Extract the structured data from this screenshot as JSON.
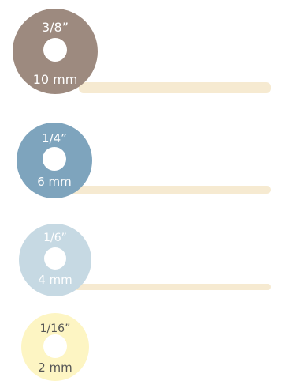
{
  "sizes": [
    {
      "inch": "3/8”",
      "mm": "10 mm",
      "disc_color": "#9d8a7f",
      "bar_color": "#f6ead1"
    },
    {
      "inch": "1/4”",
      "mm": "6 mm",
      "disc_color": "#7ea4bd",
      "bar_color": "#f6ead1"
    },
    {
      "inch": "1/6”",
      "mm": "4 mm",
      "disc_color": "#c6d9e3",
      "bar_color": "#f6ead1"
    },
    {
      "inch": "1/16”",
      "mm": "2 mm",
      "disc_color": "#fdf5c3",
      "text_color": "#555555"
    }
  ]
}
